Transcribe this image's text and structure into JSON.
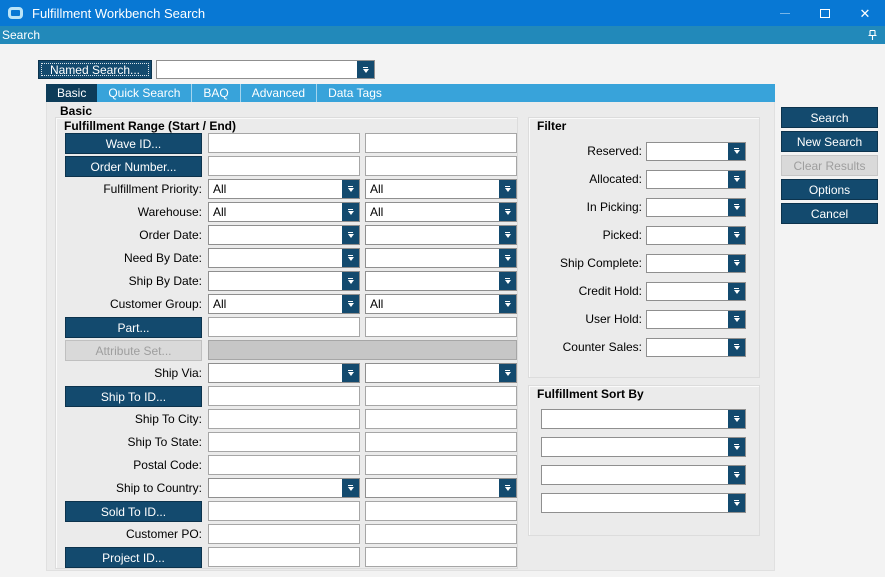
{
  "colors": {
    "titlebar": "#0878d4",
    "menubar": "#2289ba",
    "tabstrip": "#38a3da",
    "navy": "#134a6e",
    "tab-selected": "#0d3c59",
    "content": "#ebebeb",
    "window": "#f3f3f3",
    "disabled-bg": "#d9d9d9",
    "disabled-text": "#9e9e9e",
    "field-border": "#a6a6a6",
    "gray-field": "#c6c6c6"
  },
  "window": {
    "title": "Fulfillment Workbench Search"
  },
  "menubar": {
    "items": [
      {
        "label": "Search"
      }
    ]
  },
  "toolbar": {
    "named_search_label": "Named Search...",
    "named_search_value": ""
  },
  "tabs": [
    {
      "label": "Basic",
      "selected": true
    },
    {
      "label": "Quick Search",
      "selected": false
    },
    {
      "label": "BAQ",
      "selected": false
    },
    {
      "label": "Advanced",
      "selected": false
    },
    {
      "label": "Data Tags",
      "selected": false
    }
  ],
  "content": {
    "section_label": "Basic",
    "range_group": {
      "title": "Fulfillment Range (Start / End)",
      "rows": [
        {
          "left": {
            "type": "button",
            "label": "Wave ID..."
          },
          "fields": [
            {
              "type": "text",
              "value": ""
            },
            {
              "type": "text",
              "value": ""
            }
          ]
        },
        {
          "left": {
            "type": "button",
            "label": "Order Number..."
          },
          "fields": [
            {
              "type": "text",
              "value": ""
            },
            {
              "type": "text",
              "value": ""
            }
          ]
        },
        {
          "left": {
            "type": "label",
            "label": "Fulfillment Priority:"
          },
          "fields": [
            {
              "type": "combo",
              "value": "All"
            },
            {
              "type": "combo",
              "value": "All"
            }
          ]
        },
        {
          "left": {
            "type": "label",
            "label": "Warehouse:"
          },
          "fields": [
            {
              "type": "combo",
              "value": "All"
            },
            {
              "type": "combo",
              "value": "All"
            }
          ]
        },
        {
          "left": {
            "type": "label",
            "label": "Order Date:"
          },
          "fields": [
            {
              "type": "combo",
              "value": ""
            },
            {
              "type": "combo",
              "value": ""
            }
          ]
        },
        {
          "left": {
            "type": "label",
            "label": "Need By Date:"
          },
          "fields": [
            {
              "type": "combo",
              "value": ""
            },
            {
              "type": "combo",
              "value": ""
            }
          ]
        },
        {
          "left": {
            "type": "label",
            "label": "Ship By Date:"
          },
          "fields": [
            {
              "type": "combo",
              "value": ""
            },
            {
              "type": "combo",
              "value": ""
            }
          ]
        },
        {
          "left": {
            "type": "label",
            "label": "Customer Group:"
          },
          "fields": [
            {
              "type": "combo",
              "value": "All"
            },
            {
              "type": "combo",
              "value": "All"
            }
          ]
        },
        {
          "left": {
            "type": "button",
            "label": "Part..."
          },
          "fields": [
            {
              "type": "text",
              "value": ""
            },
            {
              "type": "text",
              "value": ""
            }
          ]
        },
        {
          "left": {
            "type": "button-disabled",
            "label": "Attribute Set..."
          },
          "fields": [
            {
              "type": "gray-span",
              "value": ""
            }
          ]
        },
        {
          "left": {
            "type": "label",
            "label": "Ship Via:"
          },
          "fields": [
            {
              "type": "combo",
              "value": ""
            },
            {
              "type": "combo",
              "value": ""
            }
          ]
        },
        {
          "left": {
            "type": "button",
            "label": "Ship To ID..."
          },
          "fields": [
            {
              "type": "text",
              "value": ""
            },
            {
              "type": "text",
              "value": ""
            }
          ]
        },
        {
          "left": {
            "type": "label",
            "label": "Ship To City:"
          },
          "fields": [
            {
              "type": "text",
              "value": ""
            },
            {
              "type": "text",
              "value": ""
            }
          ]
        },
        {
          "left": {
            "type": "label",
            "label": "Ship To State:"
          },
          "fields": [
            {
              "type": "text",
              "value": ""
            },
            {
              "type": "text",
              "value": ""
            }
          ]
        },
        {
          "left": {
            "type": "label",
            "label": "Postal Code:"
          },
          "fields": [
            {
              "type": "text",
              "value": ""
            },
            {
              "type": "text",
              "value": ""
            }
          ]
        },
        {
          "left": {
            "type": "label",
            "label": "Ship to Country:"
          },
          "fields": [
            {
              "type": "combo",
              "value": ""
            },
            {
              "type": "combo",
              "value": ""
            }
          ]
        },
        {
          "left": {
            "type": "button",
            "label": "Sold To ID..."
          },
          "fields": [
            {
              "type": "text",
              "value": ""
            },
            {
              "type": "text",
              "value": ""
            }
          ]
        },
        {
          "left": {
            "type": "label",
            "label": "Customer PO:"
          },
          "fields": [
            {
              "type": "text",
              "value": ""
            },
            {
              "type": "text",
              "value": ""
            }
          ]
        },
        {
          "left": {
            "type": "button",
            "label": "Project ID..."
          },
          "fields": [
            {
              "type": "text",
              "value": ""
            },
            {
              "type": "text",
              "value": ""
            }
          ]
        }
      ]
    },
    "filter_group": {
      "title": "Filter",
      "rows": [
        {
          "label": "Reserved:",
          "value": ""
        },
        {
          "label": "Allocated:",
          "value": ""
        },
        {
          "label": "In Picking:",
          "value": ""
        },
        {
          "label": "Picked:",
          "value": ""
        },
        {
          "label": "Ship Complete:",
          "value": ""
        },
        {
          "label": "Credit Hold:",
          "value": ""
        },
        {
          "label": "User Hold:",
          "value": ""
        },
        {
          "label": "Counter Sales:",
          "value": ""
        }
      ]
    },
    "sort_group": {
      "title": "Fulfillment Sort By",
      "combos": [
        {
          "value": ""
        },
        {
          "value": ""
        },
        {
          "value": ""
        },
        {
          "value": ""
        }
      ]
    }
  },
  "action_buttons": [
    {
      "label": "Search",
      "enabled": true
    },
    {
      "label": "New Search",
      "enabled": true
    },
    {
      "label": "Clear Results",
      "enabled": false
    },
    {
      "label": "Options",
      "enabled": true
    },
    {
      "label": "Cancel",
      "enabled": true
    }
  ]
}
